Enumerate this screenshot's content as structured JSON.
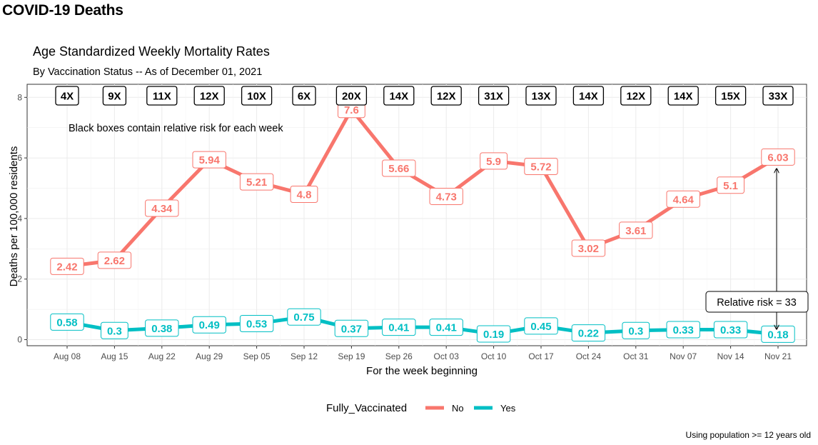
{
  "page": {
    "heading": "COVID-19 Deaths",
    "footnote": "Using population >= 12 years old"
  },
  "chart_data": {
    "type": "line",
    "title": "Age Standardized Weekly Mortality Rates",
    "subtitle": "By Vaccination Status -- As of December 01, 2021",
    "xlabel": "For the week beginning",
    "ylabel": "Deaths per 100,000 residents",
    "ylim": [
      0,
      8
    ],
    "yticks": [
      0,
      2,
      4,
      6,
      8
    ],
    "grid": true,
    "categories": [
      "Aug 08",
      "Aug 15",
      "Aug 22",
      "Aug 29",
      "Sep 05",
      "Sep 12",
      "Sep 19",
      "Sep 26",
      "Oct 03",
      "Oct 10",
      "Oct 17",
      "Oct 24",
      "Oct 31",
      "Nov 07",
      "Nov 14",
      "Nov 21"
    ],
    "series": [
      {
        "name": "No",
        "color": "#F8766D",
        "values": [
          2.42,
          2.62,
          4.34,
          5.94,
          5.21,
          4.8,
          7.6,
          5.66,
          4.73,
          5.9,
          5.72,
          3.02,
          3.61,
          4.64,
          5.1,
          6.03
        ]
      },
      {
        "name": "Yes",
        "color": "#00BFC4",
        "values": [
          0.58,
          0.3,
          0.38,
          0.49,
          0.53,
          0.75,
          0.37,
          0.41,
          0.41,
          0.19,
          0.45,
          0.22,
          0.3,
          0.33,
          0.33,
          0.18
        ]
      }
    ],
    "relative_risk_labels": [
      "4X",
      "9X",
      "11X",
      "12X",
      "10X",
      "6X",
      "20X",
      "14X",
      "12X",
      "31X",
      "13X",
      "14X",
      "12X",
      "14X",
      "15X",
      "33X"
    ],
    "annotations": {
      "boxes_note": "Black boxes contain relative risk for each week",
      "relative_risk": "Relative risk = 33"
    },
    "legend": {
      "title": "Fully_Vaccinated",
      "position": "bottom"
    }
  }
}
